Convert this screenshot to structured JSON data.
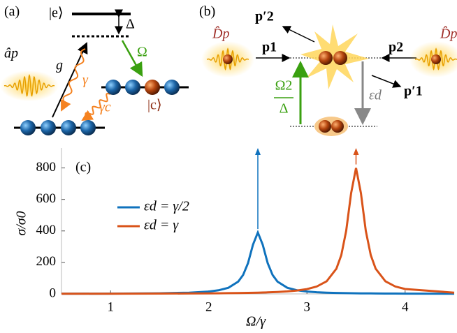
{
  "chart_data": {
    "type": "line",
    "panel_label": "(c)",
    "x_label": "Ω/γ",
    "y_label": "σ/σ0",
    "x": [
      0.5,
      1,
      1.5,
      1.8,
      2,
      2.1,
      2.2,
      2.3,
      2.35,
      2.4,
      2.45,
      2.5,
      2.55,
      2.6,
      2.65,
      2.7,
      2.8,
      2.9,
      3,
      3.1,
      3.2,
      3.3,
      3.35,
      3.4,
      3.45,
      3.5,
      3.55,
      3.6,
      3.65,
      3.7,
      3.8,
      3.9,
      4,
      4.5
    ],
    "series": [
      {
        "name": "εd = γ/2",
        "color": "#0f72bd",
        "values": [
          1,
          1.7,
          3.9,
          7.8,
          15,
          23,
          39,
          78,
          120,
          195,
          312,
          390,
          312,
          195,
          120,
          78,
          39,
          23,
          15,
          10.5,
          7.8,
          6,
          5.3,
          4.8,
          4.3,
          3.9,
          3.5,
          3.2,
          2.9,
          2.7,
          2.3,
          2,
          1.7,
          1
        ]
      },
      {
        "name": "εd = γ",
        "color": "#d95319",
        "values": [
          0.9,
          1.3,
          2,
          2.8,
          3.5,
          4.1,
          4.7,
          5.5,
          6,
          6.6,
          7.2,
          7.9,
          8.8,
          9.8,
          10.9,
          12.3,
          16,
          21.6,
          30.8,
          47,
          80,
          160,
          246,
          400,
          640,
          800,
          640,
          400,
          246,
          160,
          80,
          47,
          31,
          7.9
        ]
      }
    ],
    "xlim": [
      0.5,
      4.5
    ],
    "ylim": [
      0,
      900
    ],
    "xticks": [
      1,
      2,
      3,
      4
    ],
    "yticks": [
      0,
      200,
      400,
      600,
      800
    ],
    "legend": "upper left"
  },
  "panel_a": {
    "label": "(a)",
    "excited": "|e⟩",
    "detuning": "Δ",
    "coupling": "Ω",
    "g": "g",
    "decay": "γ",
    "decay_c": "γc",
    "state_c": "|c⟩",
    "field": "âp"
  },
  "panel_b": {
    "label": "(b)",
    "p2_out": "p′2",
    "p1_in": "p1",
    "p2_in": "p2",
    "p1_out": "p′1",
    "rate_num": "Ω2",
    "rate_den": "Δ",
    "binding": "εd",
    "packet_left": "D̂p",
    "packet_right": "D̂p"
  }
}
